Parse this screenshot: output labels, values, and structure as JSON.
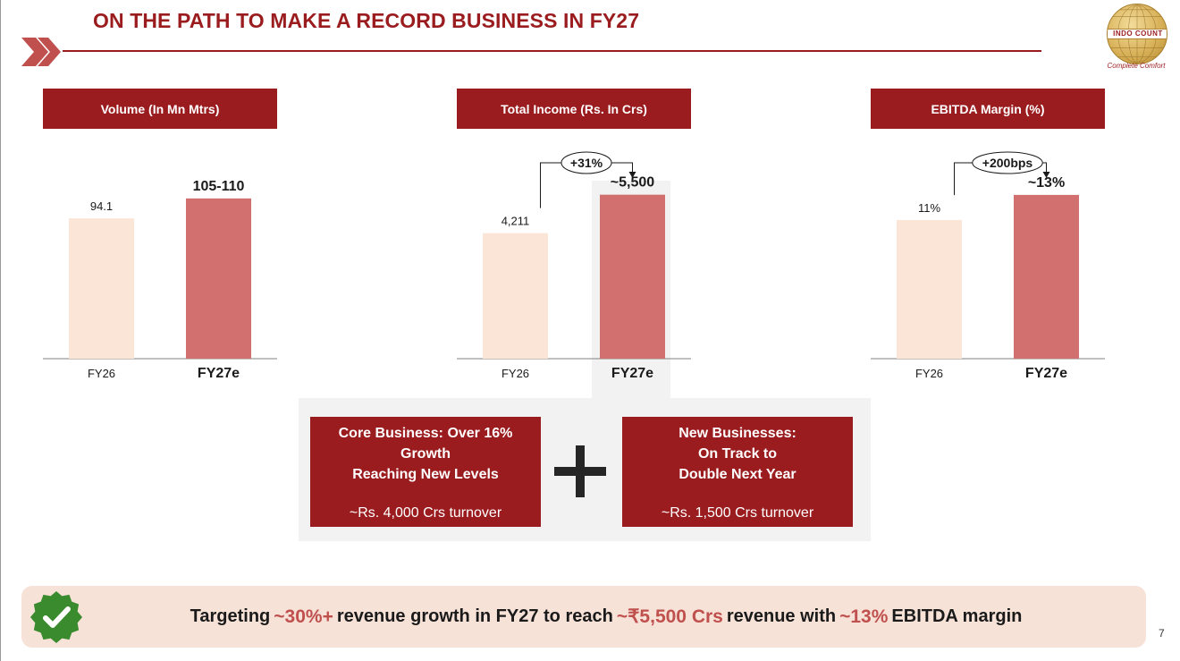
{
  "header": {
    "title": "ON THE PATH TO MAKE A RECORD BUSINESS IN FY27",
    "logo_text": "INDO COUNT",
    "logo_tagline": "Complete Comfort"
  },
  "colors": {
    "brand": "#9b1c1f",
    "bar_fy26": "#fbe5d6",
    "bar_fy27e": "#d1706e",
    "highlight_text": "#c0504d",
    "banner_bg": "#f7e2d8",
    "badge": "#3a8a2e"
  },
  "chart_data": [
    {
      "type": "bar",
      "title": "Volume (In Mn Mtrs)",
      "categories": [
        "FY26",
        "FY27e"
      ],
      "values": [
        94.1,
        107.5
      ],
      "value_labels": [
        "94.1",
        "105-110"
      ],
      "ylim": [
        0,
        120
      ]
    },
    {
      "type": "bar",
      "title": "Total Income (Rs. In Crs)",
      "categories": [
        "FY26",
        "FY27e"
      ],
      "values": [
        4211,
        5500
      ],
      "value_labels": [
        "4,211",
        "~5,500"
      ],
      "growth_label": "+31%",
      "ylim": [
        0,
        6000
      ]
    },
    {
      "type": "bar",
      "title": "EBITDA Margin (%)",
      "categories": [
        "FY26",
        "FY27e"
      ],
      "values": [
        11,
        13
      ],
      "value_labels": [
        "11%",
        "~13%"
      ],
      "growth_label": "+200bps",
      "ylim": [
        0,
        14.2
      ]
    }
  ],
  "combo": {
    "left": {
      "lines": [
        "Core Business: Over 16%",
        "Growth",
        "Reaching New Levels"
      ],
      "sub": "~Rs. 4,000 Crs turnover"
    },
    "right": {
      "lines": [
        "New Businesses:",
        "On Track to",
        "Double Next Year"
      ],
      "sub": "~Rs. 1,500 Crs turnover"
    }
  },
  "banner": {
    "t1": "Targeting",
    "h1": "~30%+",
    "t2": "revenue growth in FY27 to reach",
    "h2": "~₹5,500 Crs",
    "t3": "revenue with",
    "h3": "~13%",
    "t4": "EBITDA margin"
  },
  "page_number": "7"
}
